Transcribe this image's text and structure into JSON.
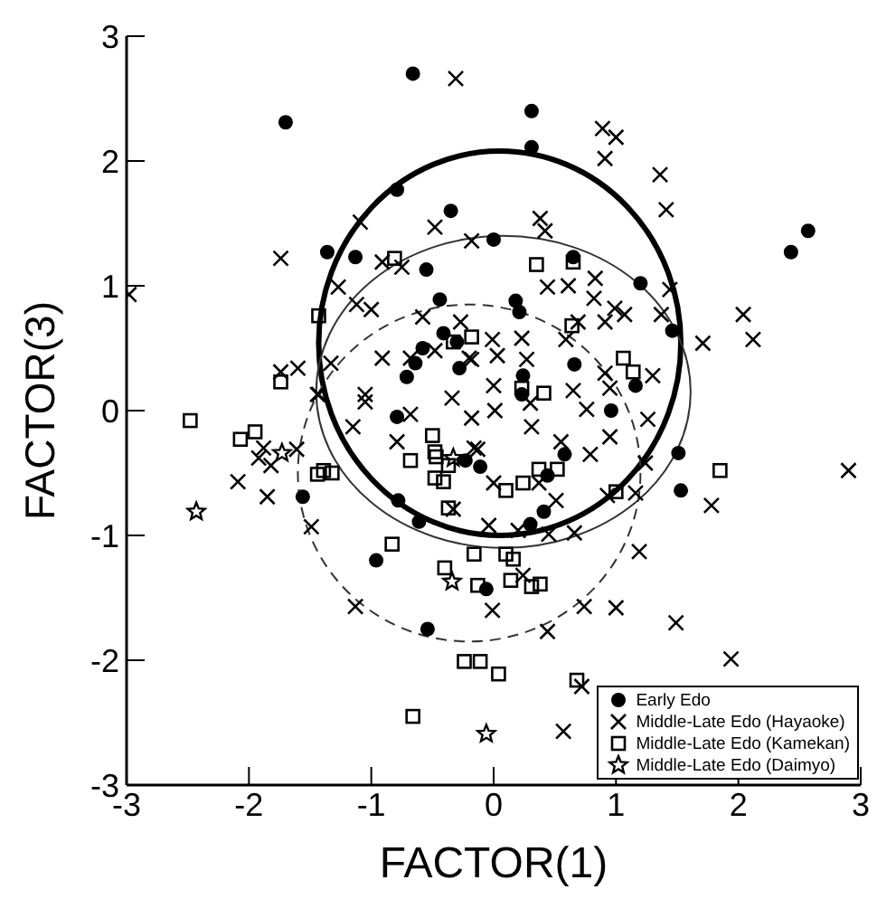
{
  "chart_data": {
    "type": "scatter",
    "xlabel": "FACTOR(1)",
    "ylabel": "FACTOR(3)",
    "xlim": [
      -3,
      3
    ],
    "ylim": [
      -3,
      3
    ],
    "xticks": [
      -3,
      -2,
      -1,
      0,
      1,
      2,
      3
    ],
    "yticks": [
      -3,
      -2,
      -1,
      0,
      1,
      2,
      3
    ],
    "grid": false,
    "legend": "bottom right",
    "series": [
      {
        "name": "Early Edo",
        "color": "#000000",
        "marker": "circle",
        "x": [
          -0.66,
          -1.7,
          0.31,
          0.31,
          -0.79,
          -0.35,
          0,
          -1.36,
          -1.13,
          -0.55,
          0.65,
          2.43,
          2.57,
          1.2,
          1.46,
          -0.44,
          -0.41,
          -0.3,
          -0.58,
          -0.64,
          -0.28,
          -0.71,
          0.18,
          0.21,
          0.66,
          0.24,
          1.16,
          0.96,
          -0.79,
          -0.23,
          -0.11,
          -1.56,
          -0.78,
          -0.61,
          -0.96,
          -0.06,
          -0.54,
          0.44,
          0.58,
          0.3,
          0.41,
          1.51,
          1.53,
          0.23
        ],
        "values": [
          2.7,
          2.31,
          2.4,
          2.11,
          1.77,
          1.6,
          1.37,
          1.27,
          1.23,
          1.13,
          1.23,
          1.27,
          1.44,
          1.02,
          0.64,
          0.89,
          0.62,
          0.55,
          0.5,
          0.38,
          0.34,
          0.27,
          0.88,
          0.79,
          0.37,
          0.28,
          0.2,
          0,
          -0.05,
          -0.4,
          -0.45,
          -0.69,
          -0.72,
          -0.89,
          -1.2,
          -1.43,
          -1.75,
          -0.52,
          -0.35,
          -0.91,
          -0.81,
          -0.34,
          -0.64,
          0.13
        ]
      },
      {
        "name": "Middle-Late Edo (Hayaoke)",
        "color": "#000000",
        "marker": "cross",
        "x": [
          -0.31,
          -1.74,
          -2.98,
          -1.09,
          -0.48,
          -0.18,
          -0.91,
          -0.75,
          -1.27,
          -1.12,
          -1,
          -0.58,
          -0.27,
          -0.01,
          -0.91,
          -0.68,
          -0.48,
          -0.2,
          -1.6,
          -1.74,
          -1.33,
          -0.34,
          -1.05,
          -1.43,
          0,
          0.89,
          1,
          0.91,
          1.36,
          1.41,
          0.38,
          0.42,
          0.83,
          0.61,
          0.44,
          0.82,
          1.44,
          0.99,
          1.07,
          0.91,
          1.37,
          0.69,
          2.04,
          2.12,
          1.71,
          0.59,
          0.23,
          0.03,
          0.27,
          -0.18,
          0.91,
          1.3,
          0.65,
          0.95,
          0.76,
          0.3,
          0.01,
          -1.44,
          -1.05,
          -1.15,
          -0.68,
          -0.18,
          -0.79,
          -1.88,
          -1.92,
          -1.82,
          -1.61,
          -2.09,
          -1.85,
          -1.49,
          -0.13,
          0,
          -0.33,
          -0.04,
          -1.13,
          -0.01,
          0.31,
          0.95,
          -0.16,
          0.55,
          0.79,
          1.26,
          0.51,
          0.37,
          0.93,
          1.16,
          1.24,
          0.2,
          0.45,
          0.66,
          1.78,
          1.19,
          2.9,
          0.24,
          0.74,
          1,
          1.49,
          0.44,
          1.94,
          0.72,
          0.57
        ],
        "values": [
          2.66,
          1.22,
          0.93,
          1.51,
          1.47,
          1.36,
          1.19,
          1.15,
          0.99,
          0.85,
          0.81,
          0.75,
          0.71,
          0.57,
          0.42,
          0.42,
          0.48,
          0.42,
          0.34,
          0.31,
          0.38,
          0.1,
          0.13,
          0.13,
          0.2,
          2.26,
          2.19,
          2.02,
          1.89,
          1.61,
          1.54,
          1.44,
          1.06,
          1,
          0.99,
          0.9,
          0.97,
          0.82,
          0.77,
          0.71,
          0.77,
          0.71,
          0.77,
          0.57,
          0.54,
          0.57,
          0.58,
          0.44,
          0.41,
          0.41,
          0.3,
          0.28,
          0.16,
          0.18,
          0.01,
          0.06,
          0,
          0.13,
          0.07,
          -0.13,
          -0.03,
          -0.06,
          -0.25,
          -0.3,
          -0.38,
          -0.44,
          -0.31,
          -0.57,
          -0.69,
          -0.93,
          -0.31,
          -0.58,
          -0.79,
          -0.92,
          -1.57,
          -1.6,
          -0.13,
          -0.21,
          -0.3,
          -0.25,
          -0.35,
          -0.07,
          -0.72,
          -0.58,
          -0.68,
          -0.66,
          -0.42,
          -0.96,
          -0.99,
          -0.98,
          -0.76,
          -1.13,
          -0.48,
          -1.32,
          -1.57,
          -1.58,
          -1.7,
          -1.77,
          -1.99,
          -2.21,
          -2.57
        ]
      },
      {
        "name": "Middle-Late Edo (Kamekan)",
        "color": "#000000",
        "marker": "square",
        "x": [
          -0.81,
          -1.43,
          -1.74,
          -2.48,
          -0.33,
          -0.18,
          0.35,
          0.65,
          0.64,
          1.06,
          1.14,
          0.23,
          0.41,
          -2.07,
          -1.95,
          -1.44,
          -1.39,
          -1.32,
          -0.5,
          -0.48,
          -0.47,
          -0.68,
          -0.48,
          -0.41,
          -0.37,
          -0.37,
          -0.83,
          -0.16,
          -0.4,
          -0.13,
          -0.24,
          -0.11,
          0.04,
          -0.66,
          0.37,
          0.52,
          0.1,
          0.24,
          1,
          1.85,
          0.1,
          0.16,
          0.14,
          0.31,
          0.38,
          0.68
        ],
        "values": [
          1.22,
          0.76,
          0.23,
          -0.08,
          0.55,
          0.59,
          1.17,
          1.19,
          0.68,
          0.42,
          0.31,
          0.18,
          0.14,
          -0.23,
          -0.17,
          -0.51,
          -0.48,
          -0.5,
          -0.2,
          -0.33,
          -0.37,
          -0.4,
          -0.54,
          -0.57,
          -0.44,
          -0.78,
          -1.07,
          -1.15,
          -1.26,
          -1.4,
          -2.01,
          -2.01,
          -2.11,
          -2.45,
          -0.47,
          -0.47,
          -0.64,
          -0.58,
          -0.65,
          -0.48,
          -1.15,
          -1.19,
          -1.36,
          -1.41,
          -1.39,
          -2.16
        ]
      },
      {
        "name": "Middle-Late Edo (Daimyo)",
        "color": "#000000",
        "marker": "star",
        "x": [
          -2.43,
          -1.73,
          -0.34,
          -0.06,
          -0.33
        ],
        "values": [
          -0.81,
          -0.34,
          -1.37,
          -2.59,
          -0.38
        ]
      }
    ]
  }
}
